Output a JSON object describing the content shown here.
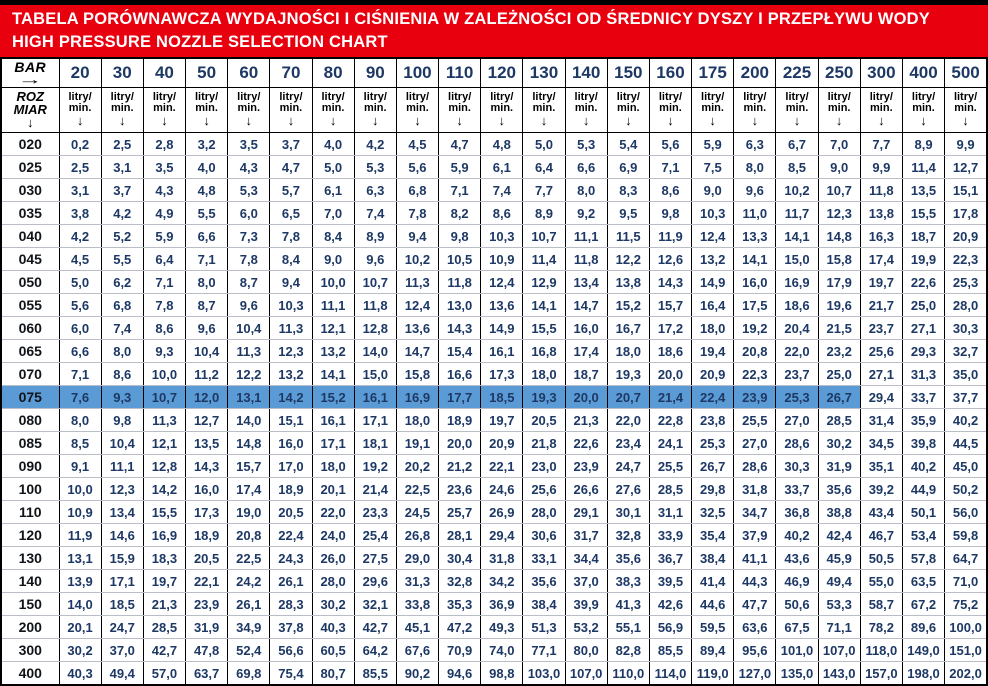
{
  "colors": {
    "banner_bg": "#e8000f",
    "banner_text": "#ffffff",
    "value_text": "#1d3865",
    "size_text": "#101418",
    "highlight_bg": "#5b9bd5",
    "grid_dark": "#000000",
    "row_divider": "#b9bec6"
  },
  "chart_data": {
    "type": "table",
    "title_pl": "TABELA PORÓWNAWCZA WYDAJNOŚCI I CIŚNIENIA W ZALEŻNOŚCI OD ŚREDNICY DYSZY I PRZEPŁYWU WODY",
    "title_en": "HIGH PRESSURE NOZZLE SELECTION CHART",
    "columns_label": "BAR",
    "columns_arrow": "→",
    "rows_label_line1": "ROZ",
    "rows_label_line2": "MIAR",
    "rows_arrow": "↓",
    "unit_line1": "litry/",
    "unit_line2": "min.",
    "unit_arrow": "↓",
    "pressure_bar": [
      20,
      30,
      40,
      50,
      60,
      70,
      80,
      90,
      100,
      110,
      120,
      130,
      140,
      150,
      160,
      175,
      200,
      225,
      250,
      300,
      400,
      500
    ],
    "rows": [
      {
        "size": "020",
        "values": [
          "0,2",
          "2,5",
          "2,8",
          "3,2",
          "3,5",
          "3,7",
          "4,0",
          "4,2",
          "4,5",
          "4,7",
          "4,8",
          "5,0",
          "5,3",
          "5,4",
          "5,6",
          "5,9",
          "6,3",
          "6,7",
          "7,0",
          "7,7",
          "8,9",
          "9,9"
        ]
      },
      {
        "size": "025",
        "values": [
          "2,5",
          "3,1",
          "3,5",
          "4,0",
          "4,3",
          "4,7",
          "5,0",
          "5,3",
          "5,6",
          "5,9",
          "6,1",
          "6,4",
          "6,6",
          "6,9",
          "7,1",
          "7,5",
          "8,0",
          "8,5",
          "9,0",
          "9,9",
          "11,4",
          "12,7"
        ]
      },
      {
        "size": "030",
        "values": [
          "3,1",
          "3,7",
          "4,3",
          "4,8",
          "5,3",
          "5,7",
          "6,1",
          "6,3",
          "6,8",
          "7,1",
          "7,4",
          "7,7",
          "8,0",
          "8,3",
          "8,6",
          "9,0",
          "9,6",
          "10,2",
          "10,7",
          "11,8",
          "13,5",
          "15,1"
        ]
      },
      {
        "size": "035",
        "values": [
          "3,8",
          "4,2",
          "4,9",
          "5,5",
          "6,0",
          "6,5",
          "7,0",
          "7,4",
          "7,8",
          "8,2",
          "8,6",
          "8,9",
          "9,2",
          "9,5",
          "9,8",
          "10,3",
          "11,0",
          "11,7",
          "12,3",
          "13,8",
          "15,5",
          "17,8"
        ]
      },
      {
        "size": "040",
        "values": [
          "4,2",
          "5,2",
          "5,9",
          "6,6",
          "7,3",
          "7,8",
          "8,4",
          "8,9",
          "9,4",
          "9,8",
          "10,3",
          "10,7",
          "11,1",
          "11,5",
          "11,9",
          "12,4",
          "13,3",
          "14,1",
          "14,8",
          "16,3",
          "18,7",
          "20,9"
        ]
      },
      {
        "size": "045",
        "values": [
          "4,5",
          "5,5",
          "6,4",
          "7,1",
          "7,8",
          "8,4",
          "9,0",
          "9,6",
          "10,2",
          "10,5",
          "10,9",
          "11,4",
          "11,8",
          "12,2",
          "12,6",
          "13,2",
          "14,1",
          "15,0",
          "15,8",
          "17,4",
          "19,9",
          "22,3"
        ]
      },
      {
        "size": "050",
        "values": [
          "5,0",
          "6,2",
          "7,1",
          "8,0",
          "8,7",
          "9,4",
          "10,0",
          "10,7",
          "11,3",
          "11,8",
          "12,4",
          "12,9",
          "13,4",
          "13,8",
          "14,3",
          "14,9",
          "16,0",
          "16,9",
          "17,9",
          "19,7",
          "22,6",
          "25,3"
        ]
      },
      {
        "size": "055",
        "values": [
          "5,6",
          "6,8",
          "7,8",
          "8,7",
          "9,6",
          "10,3",
          "11,1",
          "11,8",
          "12,4",
          "13,0",
          "13,6",
          "14,1",
          "14,7",
          "15,2",
          "15,7",
          "16,4",
          "17,5",
          "18,6",
          "19,6",
          "21,7",
          "25,0",
          "28,0"
        ]
      },
      {
        "size": "060",
        "values": [
          "6,0",
          "7,4",
          "8,6",
          "9,6",
          "10,4",
          "11,3",
          "12,1",
          "12,8",
          "13,6",
          "14,3",
          "14,9",
          "15,5",
          "16,0",
          "16,7",
          "17,2",
          "18,0",
          "19,2",
          "20,4",
          "21,5",
          "23,7",
          "27,1",
          "30,3"
        ]
      },
      {
        "size": "065",
        "values": [
          "6,6",
          "8,0",
          "9,3",
          "10,4",
          "11,3",
          "12,3",
          "13,2",
          "14,0",
          "14,7",
          "15,4",
          "16,1",
          "16,8",
          "17,4",
          "18,0",
          "18,6",
          "19,4",
          "20,8",
          "22,0",
          "23,2",
          "25,6",
          "29,3",
          "32,7"
        ]
      },
      {
        "size": "070",
        "values": [
          "7,1",
          "8,6",
          "10,0",
          "11,2",
          "12,2",
          "13,2",
          "14,1",
          "15,0",
          "15,8",
          "16,6",
          "17,3",
          "18,0",
          "18,7",
          "19,3",
          "20,0",
          "20,9",
          "22,3",
          "23,7",
          "25,0",
          "27,1",
          "31,3",
          "35,0"
        ]
      },
      {
        "size": "075",
        "values": [
          "7,6",
          "9,3",
          "10,7",
          "12,0",
          "13,1",
          "14,2",
          "15,2",
          "16,1",
          "16,9",
          "17,7",
          "18,5",
          "19,3",
          "20,0",
          "20,7",
          "21,4",
          "22,4",
          "23,9",
          "25,3",
          "26,7",
          "29,4",
          "33,7",
          "37,7"
        ]
      },
      {
        "size": "080",
        "values": [
          "8,0",
          "9,8",
          "11,3",
          "12,7",
          "14,0",
          "15,1",
          "16,1",
          "17,1",
          "18,0",
          "18,9",
          "19,7",
          "20,5",
          "21,3",
          "22,0",
          "22,8",
          "23,8",
          "25,5",
          "27,0",
          "28,5",
          "31,4",
          "35,9",
          "40,2"
        ]
      },
      {
        "size": "085",
        "values": [
          "8,5",
          "10,4",
          "12,1",
          "13,5",
          "14,8",
          "16,0",
          "17,1",
          "18,1",
          "19,1",
          "20,0",
          "20,9",
          "21,8",
          "22,6",
          "23,4",
          "24,1",
          "25,3",
          "27,0",
          "28,6",
          "30,2",
          "34,5",
          "39,8",
          "44,5"
        ]
      },
      {
        "size": "090",
        "values": [
          "9,1",
          "11,1",
          "12,8",
          "14,3",
          "15,7",
          "17,0",
          "18,0",
          "19,2",
          "20,2",
          "21,2",
          "22,1",
          "23,0",
          "23,9",
          "24,7",
          "25,5",
          "26,7",
          "28,6",
          "30,3",
          "31,9",
          "35,1",
          "40,2",
          "45,0"
        ]
      },
      {
        "size": "100",
        "values": [
          "10,0",
          "12,3",
          "14,2",
          "16,0",
          "17,4",
          "18,9",
          "20,1",
          "21,4",
          "22,5",
          "23,6",
          "24,6",
          "25,6",
          "26,6",
          "27,6",
          "28,5",
          "29,8",
          "31,8",
          "33,7",
          "35,6",
          "39,2",
          "44,9",
          "50,2"
        ]
      },
      {
        "size": "110",
        "values": [
          "10,9",
          "13,4",
          "15,5",
          "17,3",
          "19,0",
          "20,5",
          "22,0",
          "23,3",
          "24,5",
          "25,7",
          "26,9",
          "28,0",
          "29,1",
          "30,1",
          "31,1",
          "32,5",
          "34,7",
          "36,8",
          "38,8",
          "43,4",
          "50,1",
          "56,0"
        ]
      },
      {
        "size": "120",
        "values": [
          "11,9",
          "14,6",
          "16,9",
          "18,9",
          "20,8",
          "22,4",
          "24,0",
          "25,4",
          "26,8",
          "28,1",
          "29,4",
          "30,6",
          "31,7",
          "32,8",
          "33,9",
          "35,4",
          "37,9",
          "40,2",
          "42,4",
          "46,7",
          "53,4",
          "59,8"
        ]
      },
      {
        "size": "130",
        "values": [
          "13,1",
          "15,9",
          "18,3",
          "20,5",
          "22,5",
          "24,3",
          "26,0",
          "27,5",
          "29,0",
          "30,4",
          "31,8",
          "33,1",
          "34,4",
          "35,6",
          "36,7",
          "38,4",
          "41,1",
          "43,6",
          "45,9",
          "50,5",
          "57,8",
          "64,7"
        ]
      },
      {
        "size": "140",
        "values": [
          "13,9",
          "17,1",
          "19,7",
          "22,1",
          "24,2",
          "26,1",
          "28,0",
          "29,6",
          "31,3",
          "32,8",
          "34,2",
          "35,6",
          "37,0",
          "38,3",
          "39,5",
          "41,4",
          "44,3",
          "46,9",
          "49,4",
          "55,0",
          "63,5",
          "71,0"
        ]
      },
      {
        "size": "150",
        "values": [
          "14,0",
          "18,5",
          "21,3",
          "23,9",
          "26,1",
          "28,3",
          "30,2",
          "32,1",
          "33,8",
          "35,3",
          "36,9",
          "38,4",
          "39,9",
          "41,3",
          "42,6",
          "44,6",
          "47,7",
          "50,6",
          "53,3",
          "58,7",
          "67,2",
          "75,2"
        ]
      },
      {
        "size": "200",
        "values": [
          "20,1",
          "24,7",
          "28,5",
          "31,9",
          "34,9",
          "37,8",
          "40,3",
          "42,7",
          "45,1",
          "47,2",
          "49,3",
          "51,3",
          "53,2",
          "55,1",
          "56,9",
          "59,5",
          "63,6",
          "67,5",
          "71,1",
          "78,2",
          "89,6",
          "100,0"
        ]
      },
      {
        "size": "300",
        "values": [
          "30,2",
          "37,0",
          "42,7",
          "47,8",
          "52,4",
          "56,6",
          "60,5",
          "64,2",
          "67,6",
          "70,9",
          "74,0",
          "77,1",
          "80,0",
          "82,8",
          "85,5",
          "89,4",
          "95,6",
          "101,0",
          "107,0",
          "118,0",
          "149,0",
          "151,0"
        ]
      },
      {
        "size": "400",
        "values": [
          "40,3",
          "49,4",
          "57,0",
          "63,7",
          "69,8",
          "75,4",
          "80,7",
          "85,5",
          "90,2",
          "94,6",
          "98,8",
          "103,0",
          "107,0",
          "110,0",
          "114,0",
          "119,0",
          "127,0",
          "135,0",
          "143,0",
          "157,0",
          "198,0",
          "202,0"
        ]
      }
    ],
    "highlight": {
      "row": "075",
      "from_bar": 20,
      "to_bar": 250
    }
  }
}
